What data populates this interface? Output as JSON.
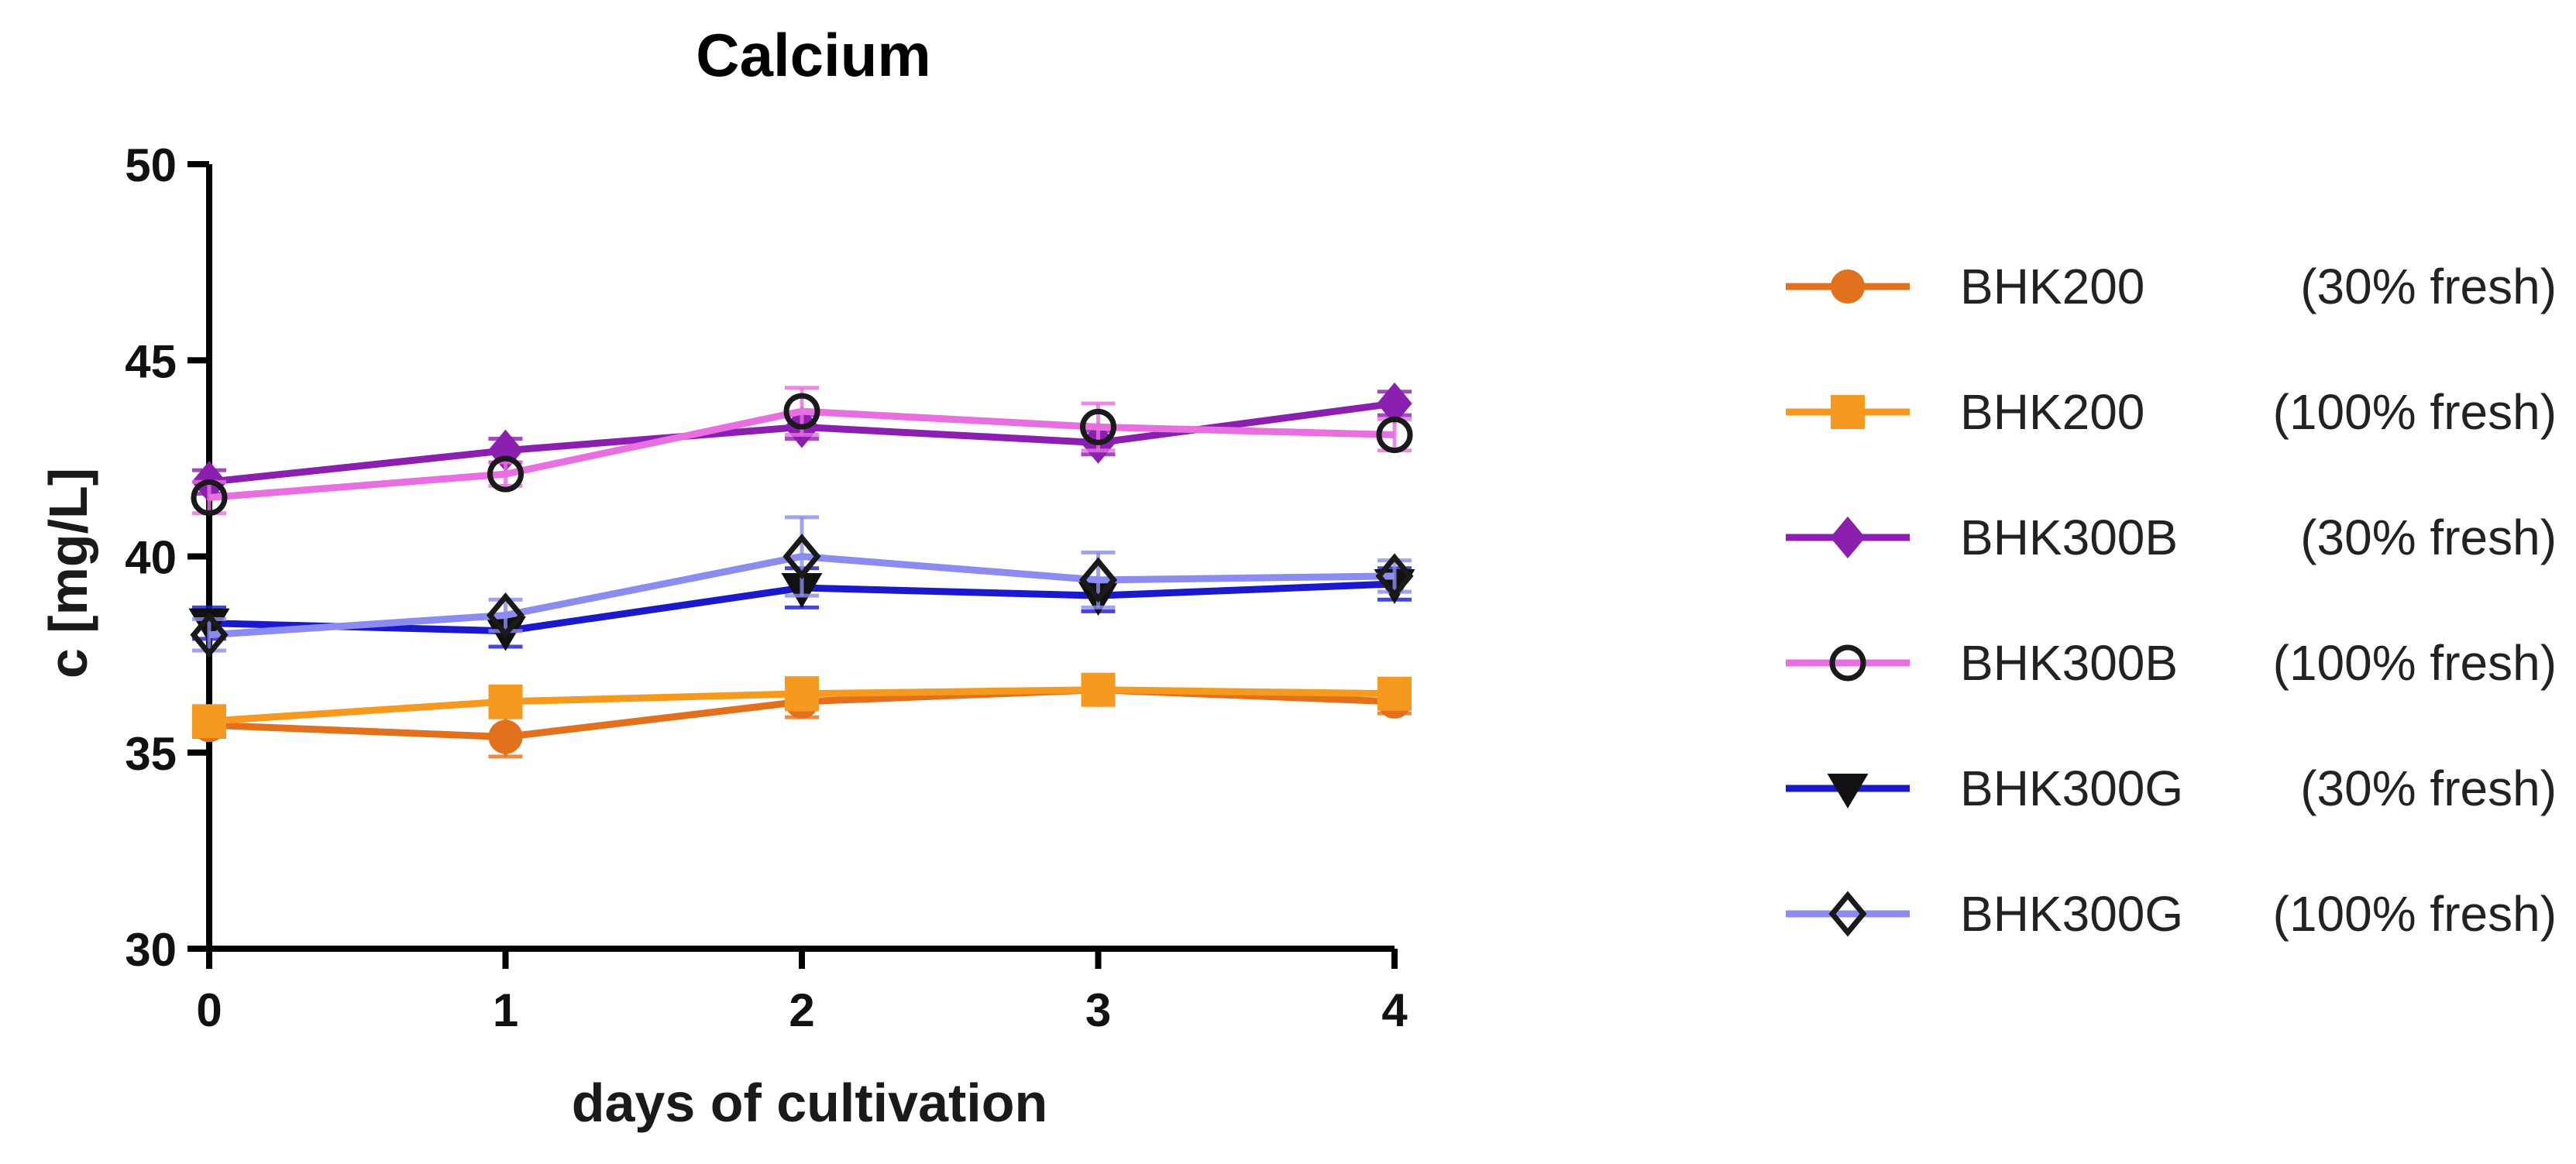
{
  "chart_data": {
    "type": "line",
    "title": "Calcium",
    "xlabel": "days of cultivation",
    "ylabel": "c [mg/L]",
    "x": [
      0,
      1,
      2,
      3,
      4
    ],
    "xticks": [
      "0",
      "1",
      "2",
      "3",
      "4"
    ],
    "yticks": [
      "30",
      "35",
      "40",
      "45",
      "50"
    ],
    "ylim": [
      30,
      50
    ],
    "xlim": [
      0,
      4
    ],
    "legend_position": "right",
    "series": [
      {
        "name": "BHK200",
        "condition": "(30% fresh)",
        "marker": "circle",
        "color": "#e2711d",
        "fill": "#e2711d",
        "values": [
          35.7,
          35.4,
          36.3,
          36.6,
          36.3
        ],
        "errors": [
          0.3,
          0.5,
          0.4,
          0.3,
          0.3
        ]
      },
      {
        "name": "BHK200",
        "condition": "(100% fresh)",
        "marker": "square",
        "color": "#f59a1e",
        "fill": "#f59a1e",
        "values": [
          35.8,
          36.3,
          36.5,
          36.6,
          36.5
        ],
        "errors": [
          0.3,
          0.3,
          0.4,
          0.3,
          0.3
        ]
      },
      {
        "name": "BHK300B",
        "condition": "(30% fresh)",
        "marker": "diamond",
        "color": "#8a1fb0",
        "fill": "#8a1fb0",
        "values": [
          41.9,
          42.7,
          43.3,
          42.9,
          43.9
        ],
        "errors": [
          0.3,
          0.3,
          0.3,
          0.3,
          0.3
        ]
      },
      {
        "name": "BHK300B",
        "condition": "(100% fresh)",
        "marker": "circle-open",
        "color": "#e86fe0",
        "fill": "#e86fe0",
        "values": [
          41.5,
          42.1,
          43.7,
          43.3,
          43.1
        ],
        "errors": [
          0.4,
          0.3,
          0.6,
          0.6,
          0.4
        ]
      },
      {
        "name": "BHK300G",
        "condition": "(30% fresh)",
        "marker": "triangle-down",
        "color": "#1a1acc",
        "fill": "#1a1acc",
        "values": [
          38.3,
          38.1,
          39.2,
          39.0,
          39.3
        ],
        "errors": [
          0.4,
          0.4,
          0.5,
          0.4,
          0.4
        ]
      },
      {
        "name": "BHK300G",
        "condition": "(100% fresh)",
        "marker": "diamond-open",
        "color": "#8c8cf0",
        "fill": "#8c8cf0",
        "values": [
          38.0,
          38.5,
          40.0,
          39.4,
          39.5
        ],
        "errors": [
          0.4,
          0.4,
          1.0,
          0.7,
          0.4
        ]
      }
    ]
  }
}
